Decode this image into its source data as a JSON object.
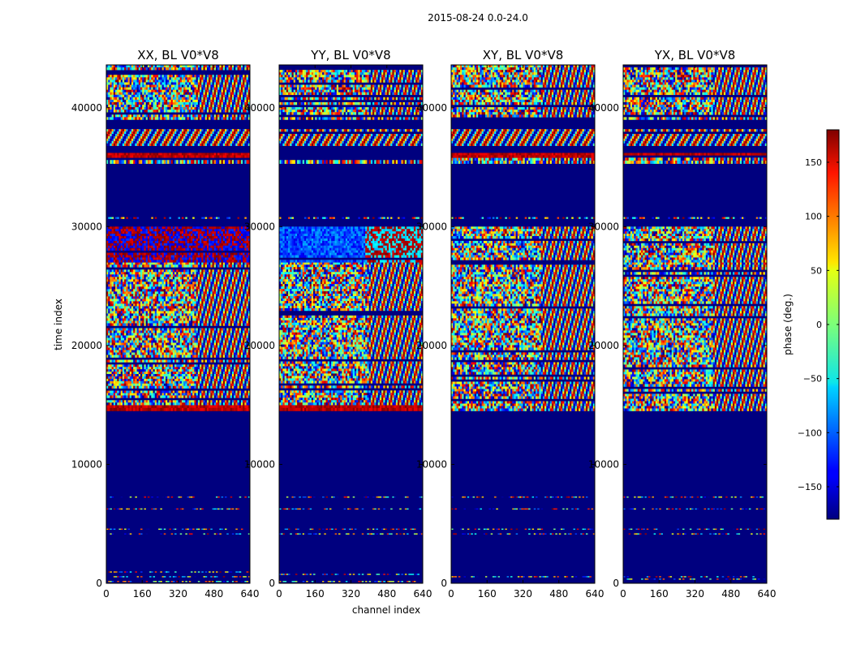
{
  "figure": {
    "suptitle": "2015-08-24 0.0-24.0",
    "xlabel": "channel index",
    "ylabel": "time index"
  },
  "chart_data": {
    "type": "heatmap",
    "x_range": [
      0,
      640
    ],
    "y_range": [
      0,
      43600
    ],
    "x_ticks": [
      0,
      160,
      320,
      480,
      640
    ],
    "y_ticks": [
      0,
      10000,
      20000,
      30000,
      40000
    ],
    "colorbar": {
      "label": "phase (deg.)",
      "range": [
        -180,
        180
      ],
      "ticks": [
        -150,
        -100,
        -50,
        0,
        50,
        100,
        150
      ],
      "tick_labels": [
        "−150",
        "−100",
        "−50",
        "0",
        "50",
        "100",
        "150"
      ],
      "colormap": "jet"
    },
    "panels": [
      {
        "title": "XX, BL V0*V8",
        "segments": [
          {
            "start": 0,
            "end": 1000,
            "pattern": "sparse-noise"
          },
          {
            "start": 4000,
            "end": 4200,
            "pattern": "line"
          },
          {
            "start": 4400,
            "end": 4600,
            "pattern": "line"
          },
          {
            "start": 6100,
            "end": 6300,
            "pattern": "line"
          },
          {
            "start": 7100,
            "end": 7300,
            "pattern": "line"
          },
          {
            "start": 14500,
            "end": 15000,
            "pattern": "red"
          },
          {
            "start": 15000,
            "end": 19000,
            "pattern": "dense-noise"
          },
          {
            "start": 19000,
            "end": 27000,
            "pattern": "dense-noise"
          },
          {
            "start": 27000,
            "end": 30000,
            "pattern": "red-blue-noise"
          },
          {
            "start": 30500,
            "end": 30800,
            "pattern": "line"
          },
          {
            "start": 35300,
            "end": 35600,
            "pattern": "dense-noise"
          },
          {
            "start": 35800,
            "end": 36200,
            "pattern": "red"
          },
          {
            "start": 36800,
            "end": 38200,
            "pattern": "stripes"
          },
          {
            "start": 39000,
            "end": 43600,
            "pattern": "dense-noise"
          }
        ]
      },
      {
        "title": "YY, BL V0*V8",
        "segments": [
          {
            "start": 0,
            "end": 1000,
            "pattern": "sparse-noise"
          },
          {
            "start": 4000,
            "end": 4200,
            "pattern": "line"
          },
          {
            "start": 4400,
            "end": 4600,
            "pattern": "line"
          },
          {
            "start": 6100,
            "end": 6300,
            "pattern": "line"
          },
          {
            "start": 7100,
            "end": 7300,
            "pattern": "line"
          },
          {
            "start": 14500,
            "end": 15000,
            "pattern": "red"
          },
          {
            "start": 15000,
            "end": 27000,
            "pattern": "dense-noise"
          },
          {
            "start": 27000,
            "end": 30000,
            "pattern": "blue-red-noise"
          },
          {
            "start": 30500,
            "end": 30800,
            "pattern": "line"
          },
          {
            "start": 35300,
            "end": 35600,
            "pattern": "dense-noise"
          },
          {
            "start": 35800,
            "end": 36200,
            "pattern": "red"
          },
          {
            "start": 36800,
            "end": 38200,
            "pattern": "stripes"
          },
          {
            "start": 39000,
            "end": 43600,
            "pattern": "dense-noise"
          }
        ]
      },
      {
        "title": "XY, BL V0*V8",
        "segments": [
          {
            "start": 0,
            "end": 1000,
            "pattern": "sparse-noise"
          },
          {
            "start": 4000,
            "end": 4200,
            "pattern": "line"
          },
          {
            "start": 4400,
            "end": 4600,
            "pattern": "line"
          },
          {
            "start": 6100,
            "end": 6300,
            "pattern": "line"
          },
          {
            "start": 7100,
            "end": 7300,
            "pattern": "line"
          },
          {
            "start": 14500,
            "end": 27000,
            "pattern": "dense-noise"
          },
          {
            "start": 27000,
            "end": 30000,
            "pattern": "dense-noise"
          },
          {
            "start": 30500,
            "end": 30800,
            "pattern": "line"
          },
          {
            "start": 35300,
            "end": 35800,
            "pattern": "dense-noise"
          },
          {
            "start": 35800,
            "end": 36200,
            "pattern": "red"
          },
          {
            "start": 36800,
            "end": 38200,
            "pattern": "stripes"
          },
          {
            "start": 39000,
            "end": 43600,
            "pattern": "dense-noise"
          }
        ]
      },
      {
        "title": "YX, BL V0*V8",
        "segments": [
          {
            "start": 0,
            "end": 1000,
            "pattern": "sparse-noise"
          },
          {
            "start": 4000,
            "end": 4200,
            "pattern": "line"
          },
          {
            "start": 4400,
            "end": 4600,
            "pattern": "line"
          },
          {
            "start": 6100,
            "end": 6300,
            "pattern": "line"
          },
          {
            "start": 7100,
            "end": 7300,
            "pattern": "line"
          },
          {
            "start": 14500,
            "end": 27000,
            "pattern": "dense-noise"
          },
          {
            "start": 27000,
            "end": 30000,
            "pattern": "dense-noise"
          },
          {
            "start": 30500,
            "end": 30800,
            "pattern": "line"
          },
          {
            "start": 35300,
            "end": 35800,
            "pattern": "dense-noise"
          },
          {
            "start": 35800,
            "end": 36200,
            "pattern": "red"
          },
          {
            "start": 36800,
            "end": 38200,
            "pattern": "stripes"
          },
          {
            "start": 39000,
            "end": 43600,
            "pattern": "dense-noise"
          }
        ]
      }
    ]
  }
}
